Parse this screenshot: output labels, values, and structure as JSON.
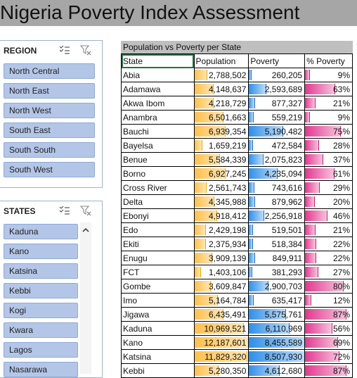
{
  "title": "Nigeria Poverty Index Assessment",
  "region_slicer": {
    "title": "REGION",
    "items": [
      "North Central",
      "North East",
      "North West",
      "South East",
      "South South",
      "South West"
    ]
  },
  "states_slicer": {
    "title": "STATES",
    "items": [
      "Kaduna",
      "Kano",
      "Katsina",
      "Kebbi",
      "Kogi",
      "Kwara",
      "Lagos",
      "Nasarawa"
    ]
  },
  "table": {
    "title": "Population vs Poverty per State",
    "headers": [
      "State",
      "Population",
      "Poverty",
      "% Poverty"
    ],
    "rows": [
      {
        "state": "Abia",
        "population": "2,788,502",
        "poverty": "260,205",
        "pct": "9%",
        "pop_v": 2788502,
        "pov_v": 260205,
        "pct_v": 9
      },
      {
        "state": "Adamawa",
        "population": "4,148,637",
        "poverty": "2,593,689",
        "pct": "63%",
        "pop_v": 4148637,
        "pov_v": 2593689,
        "pct_v": 63
      },
      {
        "state": "Akwa Ibom",
        "population": "4,218,729",
        "poverty": "877,327",
        "pct": "21%",
        "pop_v": 4218729,
        "pov_v": 877327,
        "pct_v": 21
      },
      {
        "state": "Anambra",
        "population": "6,501,663",
        "poverty": "559,219",
        "pct": "9%",
        "pop_v": 6501663,
        "pov_v": 559219,
        "pct_v": 9
      },
      {
        "state": "Bauchi",
        "population": "6,939,354",
        "poverty": "5,190,482",
        "pct": "75%",
        "pop_v": 6939354,
        "pov_v": 5190482,
        "pct_v": 75
      },
      {
        "state": "Bayelsa",
        "population": "1,659,219",
        "poverty": "472,584",
        "pct": "28%",
        "pop_v": 1659219,
        "pov_v": 472584,
        "pct_v": 28
      },
      {
        "state": "Benue",
        "population": "5,584,339",
        "poverty": "2,075,823",
        "pct": "37%",
        "pop_v": 5584339,
        "pov_v": 2075823,
        "pct_v": 37
      },
      {
        "state": "Borno",
        "population": "6,927,245",
        "poverty": "4,235,094",
        "pct": "61%",
        "pop_v": 6927245,
        "pov_v": 4235094,
        "pct_v": 61
      },
      {
        "state": "Cross River",
        "population": "2,561,743",
        "poverty": "743,616",
        "pct": "29%",
        "pop_v": 2561743,
        "pov_v": 743616,
        "pct_v": 29
      },
      {
        "state": "Delta",
        "population": "4,345,988",
        "poverty": "879,962",
        "pct": "20%",
        "pop_v": 4345988,
        "pov_v": 879962,
        "pct_v": 20
      },
      {
        "state": "Ebonyi",
        "population": "4,918,412",
        "poverty": "2,256,918",
        "pct": "46%",
        "pop_v": 4918412,
        "pov_v": 2256918,
        "pct_v": 46
      },
      {
        "state": "Edo",
        "population": "2,429,198",
        "poverty": "519,501",
        "pct": "21%",
        "pop_v": 2429198,
        "pov_v": 519501,
        "pct_v": 21
      },
      {
        "state": "Ekiti",
        "population": "2,375,934",
        "poverty": "518,384",
        "pct": "22%",
        "pop_v": 2375934,
        "pov_v": 518384,
        "pct_v": 22
      },
      {
        "state": "Enugu",
        "population": "3,909,139",
        "poverty": "849,911",
        "pct": "22%",
        "pop_v": 3909139,
        "pov_v": 849911,
        "pct_v": 22
      },
      {
        "state": "FCT",
        "population": "1,403,106",
        "poverty": "381,293",
        "pct": "27%",
        "pop_v": 1403106,
        "pov_v": 381293,
        "pct_v": 27
      },
      {
        "state": "Gombe",
        "population": "3,609,847",
        "poverty": "2,900,703",
        "pct": "80%",
        "pop_v": 3609847,
        "pov_v": 2900703,
        "pct_v": 80
      },
      {
        "state": "Imo",
        "population": "5,164,784",
        "poverty": "635,417",
        "pct": "12%",
        "pop_v": 5164784,
        "pov_v": 635417,
        "pct_v": 12
      },
      {
        "state": "Jigawa",
        "population": "6,435,491",
        "poverty": "5,575,761",
        "pct": "87%",
        "pop_v": 6435491,
        "pov_v": 5575761,
        "pct_v": 87
      },
      {
        "state": "Kaduna",
        "population": "10,969,521",
        "poverty": "6,110,969",
        "pct": "56%",
        "pop_v": 10969521,
        "pov_v": 6110969,
        "pct_v": 56
      },
      {
        "state": "Kano",
        "population": "12,187,601",
        "poverty": "8,455,589",
        "pct": "69%",
        "pop_v": 12187601,
        "pov_v": 8455589,
        "pct_v": 69
      },
      {
        "state": "Katsina",
        "population": "11,829,320",
        "poverty": "8,507,930",
        "pct": "72%",
        "pop_v": 11829320,
        "pov_v": 8507930,
        "pct_v": 72
      },
      {
        "state": "Kebbi",
        "population": "5,280,350",
        "poverty": "4,612,680",
        "pct": "87%",
        "pop_v": 5280350,
        "pov_v": 4612680,
        "pct_v": 87
      }
    ]
  },
  "colors": {
    "title_bar": "#a6a6a6",
    "slicer_button": "#b4c6e7",
    "population_bar": "#ffc04d",
    "poverty_bar": "#2f8fe8",
    "pct_bar": "#e2388f"
  },
  "icons": {
    "multi_select": "multi-select-icon",
    "clear_filter": "clear-filter-icon",
    "scroll_up": "scroll-up-icon"
  }
}
